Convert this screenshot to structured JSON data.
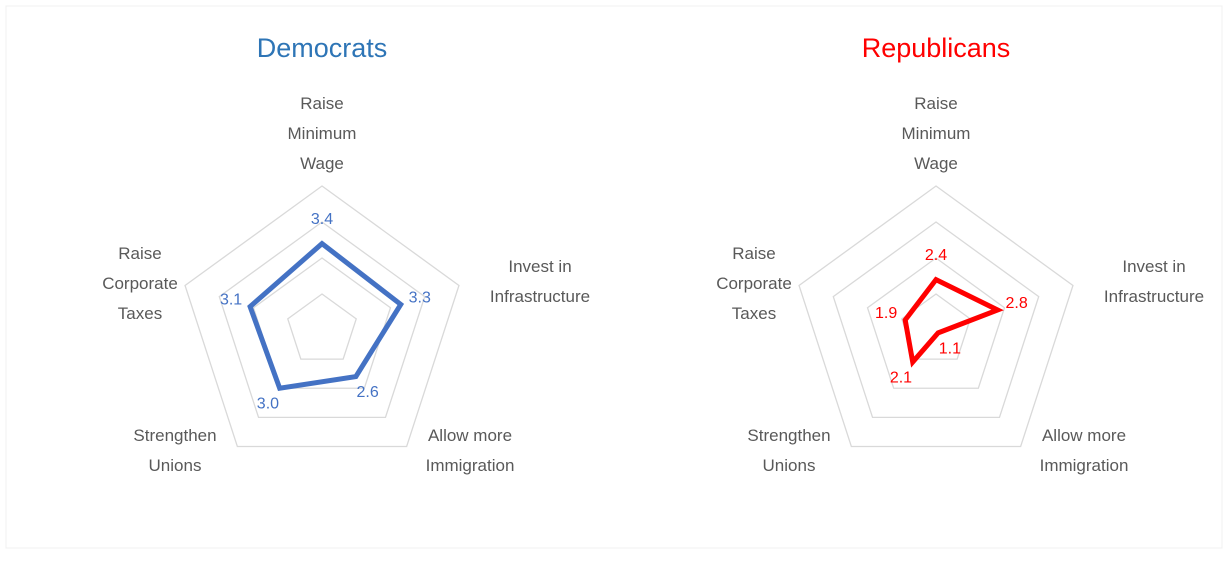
{
  "chart_data": [
    {
      "type": "radar",
      "title": "Democrats",
      "title_color": "#2e75b6",
      "color": "#4472c4",
      "categories": [
        [
          "Raise",
          "Minimum",
          "Wage"
        ],
        [
          "Invest in",
          "Infrastructure"
        ],
        [
          "Allow more",
          "Immigration"
        ],
        [
          "Strengthen",
          "Unions"
        ],
        [
          "Raise",
          "Corporate",
          "Taxes"
        ]
      ],
      "values": [
        3.4,
        3.3,
        2.6,
        3.0,
        3.1
      ],
      "value_labels": [
        "3.4",
        "3.3",
        "2.6",
        "3.0",
        "3.1"
      ],
      "rlim": [
        1,
        5
      ],
      "rticks": [
        1,
        2,
        3,
        4,
        5
      ],
      "grid": true
    },
    {
      "type": "radar",
      "title": "Republicans",
      "title_color": "#ff0000",
      "color": "#ff0000",
      "categories": [
        [
          "Raise",
          "Minimum",
          "Wage"
        ],
        [
          "Invest in",
          "Infrastructure"
        ],
        [
          "Allow more",
          "Immigration"
        ],
        [
          "Strengthen",
          "Unions"
        ],
        [
          "Raise",
          "Corporate",
          "Taxes"
        ]
      ],
      "values": [
        2.4,
        2.8,
        1.1,
        2.1,
        1.9
      ],
      "rlim": [
        1,
        5
      ],
      "rticks": [
        1,
        2,
        3,
        4,
        5
      ],
      "grid": true
    }
  ]
}
